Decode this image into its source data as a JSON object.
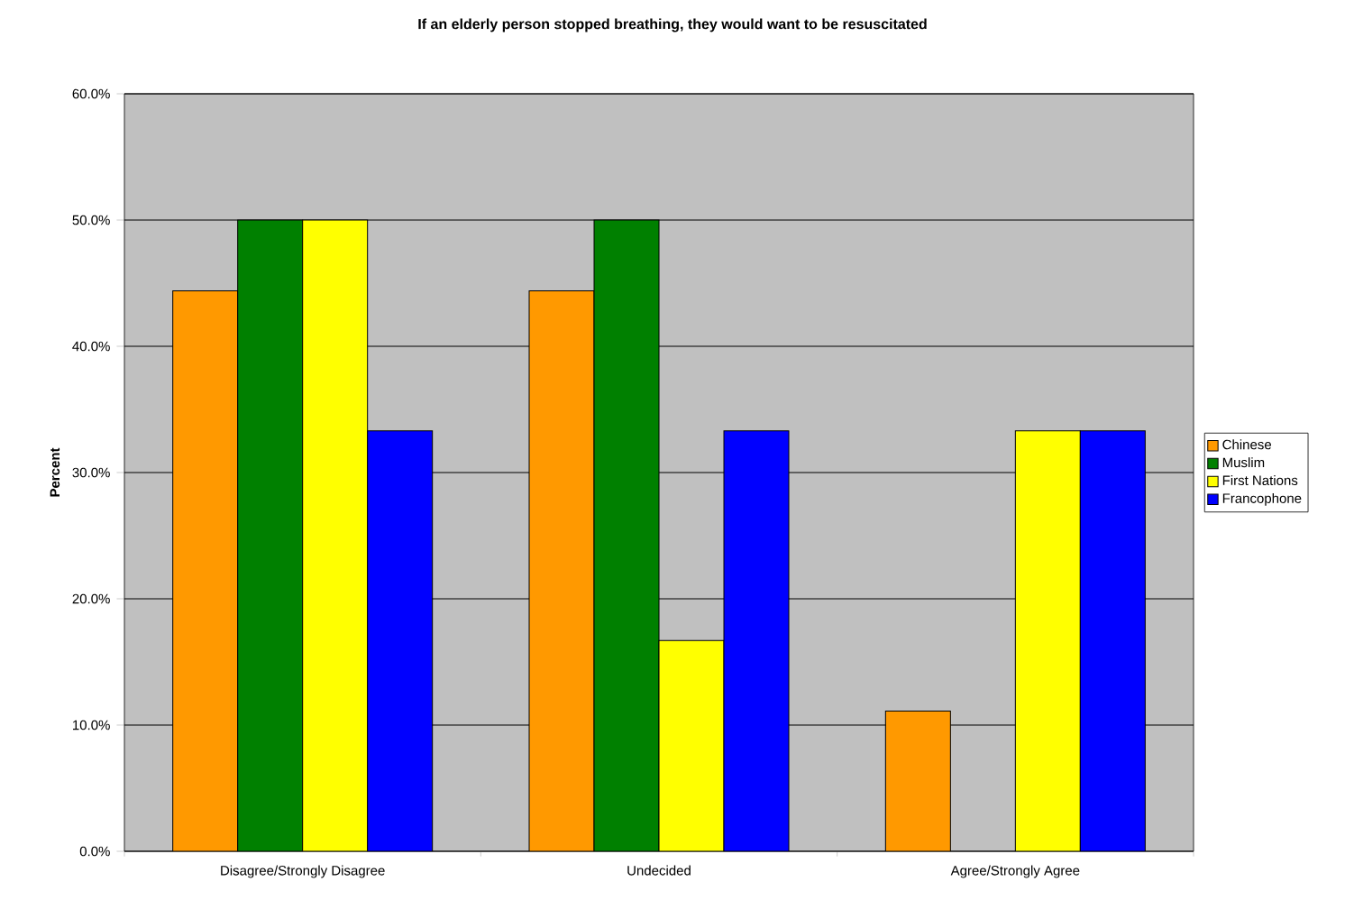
{
  "chart_data": {
    "type": "bar",
    "title": "If an elderly person stopped breathing, they would want to be resuscitated",
    "ylabel": "Percent",
    "categories": [
      "Disagree/Strongly Disagree",
      "Undecided",
      "Agree/Strongly Agree"
    ],
    "series": [
      {
        "name": "Chinese",
        "color": "#ff9900",
        "values": [
          44.4,
          44.4,
          11.1
        ]
      },
      {
        "name": "Muslim",
        "color": "#008000",
        "values": [
          50.0,
          50.0,
          null
        ]
      },
      {
        "name": "First Nations",
        "color": "#ffff00",
        "values": [
          50.0,
          16.7,
          33.3
        ]
      },
      {
        "name": "Francophone",
        "color": "#0000ff",
        "values": [
          33.3,
          33.3,
          33.3
        ]
      }
    ],
    "ylim": [
      0,
      60
    ],
    "yticks": [
      {
        "value": 0,
        "label": "0.0%"
      },
      {
        "value": 10,
        "label": "10.0%"
      },
      {
        "value": 20,
        "label": "20.0%"
      },
      {
        "value": 30,
        "label": "30.0%"
      },
      {
        "value": 40,
        "label": "40.0%"
      },
      {
        "value": 50,
        "label": "50.0%"
      },
      {
        "value": 60,
        "label": "60.0%"
      }
    ],
    "grid": "y",
    "legend": "right"
  }
}
